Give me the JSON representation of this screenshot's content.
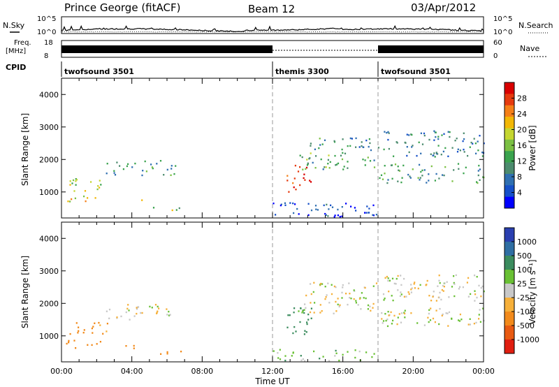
{
  "header": {
    "station": "Prince George (fitACF)",
    "beam": "Beam 12",
    "date": "03/Apr/2012"
  },
  "top_panels": {
    "nsky_label": "N.Sky",
    "nsearch_label": "N.Search",
    "noise_ticks": [
      "10^5",
      "10^0"
    ],
    "freq_label_line1": "Freq.",
    "freq_label_line2": "[MHz]",
    "freq_ticks": [
      "18",
      "8"
    ],
    "nave_label": "Nave",
    "nave_ticks": [
      "60",
      "0"
    ],
    "cpid_label": "CPID",
    "cpid_segments": [
      {
        "name": "twofsound 3501",
        "start_hour": 0,
        "end_hour": 12
      },
      {
        "name": "themis 3300",
        "start_hour": 12,
        "end_hour": 18
      },
      {
        "name": "twofsound 3501",
        "start_hour": 18,
        "end_hour": 24
      }
    ]
  },
  "chart_data": [
    {
      "type": "heatmap",
      "quantity": "power",
      "ylabel": "Slant Range [km]",
      "ylim": [
        200,
        4500
      ],
      "y_ticks": [
        1000,
        2000,
        3000,
        4000
      ],
      "xlim": [
        0,
        24
      ],
      "colorbar_label": "Power [dB]",
      "colorbar_ticks": [
        "28",
        "24",
        "20",
        "16",
        "12",
        "8",
        "4"
      ],
      "colorbar_colors": [
        "#0000ff",
        "#1650c8",
        "#2f6fb1",
        "#4c8b6e",
        "#3aa34e",
        "#7bc043",
        "#c5d630",
        "#f2b705",
        "#f57f17",
        "#e63a0e",
        "#d90000"
      ],
      "regions": [
        {
          "x": [
            0.2,
            2.6
          ],
          "y": [
            1050,
            1450
          ],
          "level": 0.55
        },
        {
          "x": [
            0.2,
            2.4
          ],
          "y": [
            700,
            900
          ],
          "level": 0.6
        },
        {
          "x": [
            2.5,
            6.5
          ],
          "y": [
            1500,
            2000
          ],
          "level": 0.35
        },
        {
          "x": [
            3.6,
            4.6
          ],
          "y": [
            600,
            780
          ],
          "level": 0.5
        },
        {
          "x": [
            5.2,
            6.8
          ],
          "y": [
            450,
            560
          ],
          "level": 0.5
        },
        {
          "x": [
            12.8,
            14.2
          ],
          "y": [
            1000,
            1900
          ],
          "level": 0.95
        },
        {
          "x": [
            13.4,
            17.8
          ],
          "y": [
            1700,
            2250
          ],
          "level": 0.4
        },
        {
          "x": [
            14.0,
            18.0
          ],
          "y": [
            2300,
            2700
          ],
          "level": 0.3
        },
        {
          "x": [
            18.0,
            24.0
          ],
          "y": [
            1300,
            1900
          ],
          "level": 0.35
        },
        {
          "x": [
            18.2,
            24.0
          ],
          "y": [
            2100,
            2900
          ],
          "level": 0.25
        },
        {
          "x": [
            12.0,
            18.0
          ],
          "y": [
            250,
            700
          ],
          "level": 0.1
        }
      ]
    },
    {
      "type": "heatmap",
      "quantity": "velocity",
      "ylabel": "Slant Range [km]",
      "xlabel": "Time UT",
      "ylim": [
        200,
        4500
      ],
      "y_ticks": [
        1000,
        2000,
        3000,
        4000
      ],
      "xlim": [
        0,
        24
      ],
      "x_tick_labels": [
        "00:00",
        "04:00",
        "08:00",
        "12:00",
        "16:00",
        "20:00",
        "00:00"
      ],
      "x_tick_hours": [
        0,
        4,
        8,
        12,
        16,
        20,
        24
      ],
      "colorbar_label": "Velocity [m s⁻¹]",
      "colorbar_ticks": [
        "1000",
        "500",
        "100",
        "25",
        "-25",
        "-100",
        "-500",
        "-1000"
      ],
      "colorbar_colors": [
        "#2a3fb0",
        "#2f6ea3",
        "#3b8c5e",
        "#69c034",
        "#c8c8c8",
        "#f6b03a",
        "#f28a1b",
        "#e85a12",
        "#e01e10"
      ],
      "regions": [
        {
          "x": [
            0.2,
            2.6
          ],
          "y": [
            1050,
            1500
          ],
          "v": -150
        },
        {
          "x": [
            0.2,
            2.4
          ],
          "y": [
            650,
            950
          ],
          "v": -200
        },
        {
          "x": [
            2.5,
            6.5
          ],
          "y": [
            1500,
            2000
          ],
          "v": 0
        },
        {
          "x": [
            3.6,
            4.6
          ],
          "y": [
            600,
            780
          ],
          "v": -200
        },
        {
          "x": [
            5.2,
            6.8
          ],
          "y": [
            450,
            560
          ],
          "v": -150
        },
        {
          "x": [
            12.8,
            14.2
          ],
          "y": [
            1000,
            1900
          ],
          "v": 150
        },
        {
          "x": [
            13.4,
            17.8
          ],
          "y": [
            1700,
            2300
          ],
          "v": 0
        },
        {
          "x": [
            14.0,
            18.0
          ],
          "y": [
            2300,
            2700
          ],
          "v": 0
        },
        {
          "x": [
            18.0,
            24.0
          ],
          "y": [
            1300,
            1900
          ],
          "v": 0
        },
        {
          "x": [
            18.2,
            24.0
          ],
          "y": [
            2100,
            2900
          ],
          "v": 0
        },
        {
          "x": [
            12.0,
            18.0
          ],
          "y": [
            250,
            600
          ],
          "v": 60
        }
      ]
    }
  ]
}
